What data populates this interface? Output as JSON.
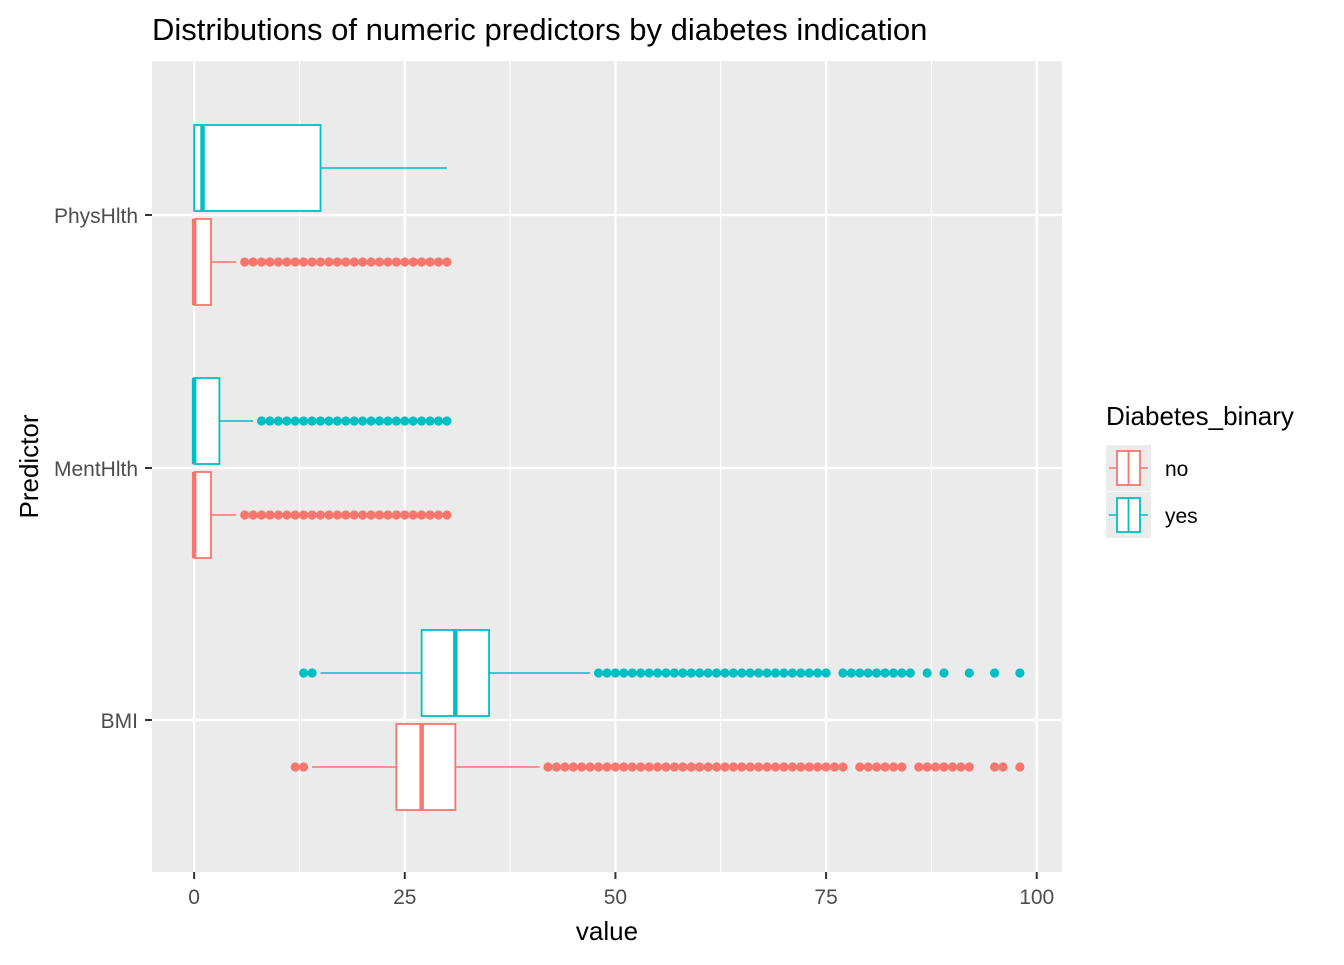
{
  "chart_data": {
    "type": "boxplot",
    "orientation": "horizontal",
    "title": "Distributions of numeric predictors by diabetes indication",
    "xlabel": "value",
    "ylabel": "Predictor",
    "xlim": [
      -5,
      103
    ],
    "x_ticks": [
      0,
      25,
      50,
      75,
      100
    ],
    "categories": [
      "BMI",
      "MentHlth",
      "PhysHlth"
    ],
    "grid": true,
    "legend": {
      "title": "Diabetes_binary",
      "position": "right",
      "entries": [
        {
          "label": "no",
          "color": "#F8766D"
        },
        {
          "label": "yes",
          "color": "#00BFC4"
        }
      ]
    },
    "series": [
      {
        "group": "no",
        "color": "#F8766D",
        "boxes": [
          {
            "category": "BMI",
            "lower_whisker": 14,
            "q1": 24,
            "median": 27,
            "q3": 31,
            "upper_whisker": 41,
            "outliers": [
              12,
              13,
              42,
              43,
              44,
              45,
              46,
              47,
              48,
              49,
              50,
              51,
              52,
              53,
              54,
              55,
              56,
              57,
              58,
              59,
              60,
              61,
              62,
              63,
              64,
              65,
              66,
              67,
              68,
              69,
              70,
              71,
              72,
              73,
              74,
              75,
              76,
              77,
              79,
              80,
              81,
              82,
              83,
              84,
              86,
              87,
              88,
              89,
              90,
              91,
              92,
              95,
              96,
              98
            ]
          },
          {
            "category": "MentHlth",
            "lower_whisker": 0,
            "q1": 0,
            "median": 0,
            "q3": 2,
            "upper_whisker": 5,
            "outliers": [
              6,
              7,
              8,
              9,
              10,
              11,
              12,
              13,
              14,
              15,
              16,
              17,
              18,
              19,
              20,
              21,
              22,
              23,
              24,
              25,
              26,
              27,
              28,
              29,
              30
            ]
          },
          {
            "category": "PhysHlth",
            "lower_whisker": 0,
            "q1": 0,
            "median": 0,
            "q3": 2,
            "upper_whisker": 5,
            "outliers": [
              6,
              7,
              8,
              9,
              10,
              11,
              12,
              13,
              14,
              15,
              16,
              17,
              18,
              19,
              20,
              21,
              22,
              23,
              24,
              25,
              26,
              27,
              28,
              29,
              30
            ]
          }
        ]
      },
      {
        "group": "yes",
        "color": "#00BFC4",
        "boxes": [
          {
            "category": "BMI",
            "lower_whisker": 15,
            "q1": 27,
            "median": 31,
            "q3": 35,
            "upper_whisker": 47,
            "outliers": [
              13,
              14,
              48,
              49,
              50,
              51,
              52,
              53,
              54,
              55,
              56,
              57,
              58,
              59,
              60,
              61,
              62,
              63,
              64,
              65,
              66,
              67,
              68,
              69,
              70,
              71,
              72,
              73,
              74,
              75,
              77,
              78,
              79,
              80,
              81,
              82,
              83,
              84,
              85,
              87,
              89,
              92,
              95,
              98
            ]
          },
          {
            "category": "MentHlth",
            "lower_whisker": 0,
            "q1": 0,
            "median": 0,
            "q3": 3,
            "upper_whisker": 7,
            "outliers": [
              8,
              9,
              10,
              11,
              12,
              13,
              14,
              15,
              16,
              17,
              18,
              19,
              20,
              21,
              22,
              23,
              24,
              25,
              26,
              27,
              28,
              29,
              30
            ]
          },
          {
            "category": "PhysHlth",
            "lower_whisker": 0,
            "q1": 0,
            "median": 1,
            "q3": 15,
            "upper_whisker": 30,
            "outliers": []
          }
        ]
      }
    ]
  }
}
